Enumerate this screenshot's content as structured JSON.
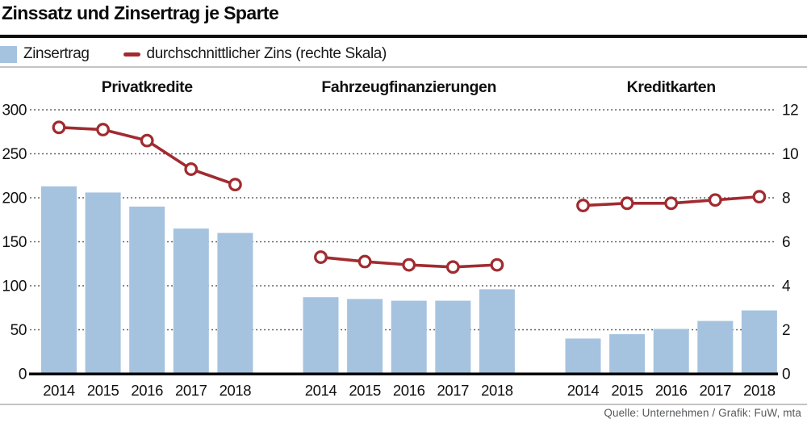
{
  "title": "Zinssatz und Zinsertrag je Sparte",
  "legend": {
    "bar_label": "Zinsertrag",
    "line_label": "durchschnittlicher Zins (rechte Skala)"
  },
  "footer": {
    "source": "Quelle: Unternehmen / Grafik: FuW, mta"
  },
  "colors": {
    "bar": "#a5c3df",
    "line": "#a12b30",
    "marker_fill": "#ffffff",
    "grid_dots": "#3a3a3a",
    "axis_text": "#111111",
    "baseline": "#000000"
  },
  "chart_data": {
    "type": "bar",
    "subtype": "grouped panels with overlay line (right scale)",
    "categories": [
      "2014",
      "2015",
      "2016",
      "2017",
      "2018"
    ],
    "left_axis": {
      "ticks": [
        0,
        50,
        100,
        150,
        200,
        250,
        300
      ],
      "series": "Zinsertrag",
      "range": [
        0,
        300
      ]
    },
    "right_axis": {
      "ticks": [
        0,
        2,
        4,
        6,
        8,
        10,
        12
      ],
      "series": "durchschnittlicher Zins",
      "range": [
        0,
        12
      ]
    },
    "grid": "dotted horizontal",
    "panels": [
      {
        "title": "Privatkredite",
        "bars": [
          213,
          206,
          190,
          165,
          160
        ],
        "line": [
          11.2,
          11.1,
          10.6,
          9.3,
          8.6
        ]
      },
      {
        "title": "Fahrzeugfinanzierungen",
        "bars": [
          87,
          85,
          83,
          83,
          96
        ],
        "line": [
          5.3,
          5.1,
          4.95,
          4.85,
          4.95
        ]
      },
      {
        "title": "Kreditkarten",
        "bars": [
          40,
          45,
          51,
          60,
          72
        ],
        "line": [
          7.65,
          7.75,
          7.75,
          7.9,
          8.05
        ]
      }
    ]
  }
}
